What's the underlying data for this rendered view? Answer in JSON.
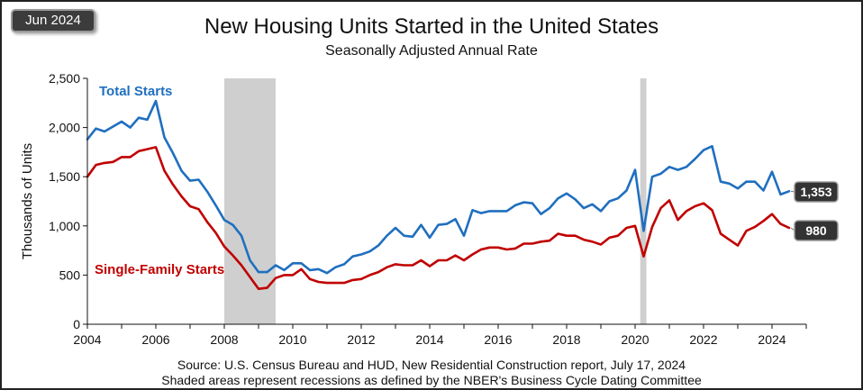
{
  "badge": "Jun 2024",
  "footer": {
    "source": "Source:  U.S. Census Bureau and HUD, New Residential Construction report, July 17, 2024",
    "note": "Shaded areas represent recessions as defined by the NBER's Business Cycle Dating Committee"
  },
  "chart_data": {
    "type": "line",
    "title": "New Housing Units Started in the United States",
    "subtitle": "Seasonally Adjusted Annual Rate",
    "ylabel": "Thousands of Units",
    "xlabel": "",
    "xlim": [
      2004,
      2025
    ],
    "ylim": [
      0,
      2500
    ],
    "x_ticks": [
      2004,
      2006,
      2008,
      2010,
      2012,
      2014,
      2016,
      2018,
      2020,
      2022,
      2024
    ],
    "x_tick_labels": [
      "2004",
      "2006",
      "2008",
      "2010",
      "2012",
      "2014",
      "2016",
      "2018",
      "2020",
      "2022",
      "2024"
    ],
    "y_ticks": [
      0,
      500,
      1000,
      1500,
      2000,
      2500
    ],
    "y_tick_labels": [
      "0",
      "500",
      "1,000",
      "1,500",
      "2,000",
      "2,500"
    ],
    "grid": false,
    "recessions": [
      {
        "start": 2008.0,
        "end": 2009.5
      },
      {
        "start": 2020.15,
        "end": 2020.33
      }
    ],
    "series": [
      {
        "name": "Total Starts",
        "color": "#1f6fbf",
        "label_position": "top-left",
        "end_label": "1,353",
        "points": [
          [
            2004.0,
            1880
          ],
          [
            2004.25,
            1990
          ],
          [
            2004.5,
            1960
          ],
          [
            2004.75,
            2010
          ],
          [
            2005.0,
            2060
          ],
          [
            2005.25,
            2000
          ],
          [
            2005.5,
            2100
          ],
          [
            2005.75,
            2080
          ],
          [
            2006.0,
            2270
          ],
          [
            2006.25,
            1900
          ],
          [
            2006.5,
            1740
          ],
          [
            2006.75,
            1560
          ],
          [
            2007.0,
            1460
          ],
          [
            2007.25,
            1470
          ],
          [
            2007.5,
            1350
          ],
          [
            2007.75,
            1210
          ],
          [
            2008.0,
            1060
          ],
          [
            2008.25,
            1010
          ],
          [
            2008.5,
            900
          ],
          [
            2008.75,
            650
          ],
          [
            2009.0,
            530
          ],
          [
            2009.25,
            530
          ],
          [
            2009.5,
            600
          ],
          [
            2009.75,
            550
          ],
          [
            2010.0,
            620
          ],
          [
            2010.25,
            620
          ],
          [
            2010.5,
            550
          ],
          [
            2010.75,
            560
          ],
          [
            2011.0,
            520
          ],
          [
            2011.25,
            580
          ],
          [
            2011.5,
            610
          ],
          [
            2011.75,
            690
          ],
          [
            2012.0,
            710
          ],
          [
            2012.25,
            740
          ],
          [
            2012.5,
            800
          ],
          [
            2012.75,
            900
          ],
          [
            2013.0,
            980
          ],
          [
            2013.25,
            900
          ],
          [
            2013.5,
            890
          ],
          [
            2013.75,
            1010
          ],
          [
            2014.0,
            880
          ],
          [
            2014.25,
            1010
          ],
          [
            2014.5,
            1020
          ],
          [
            2014.75,
            1070
          ],
          [
            2015.0,
            900
          ],
          [
            2015.25,
            1160
          ],
          [
            2015.5,
            1130
          ],
          [
            2015.75,
            1150
          ],
          [
            2016.0,
            1150
          ],
          [
            2016.25,
            1150
          ],
          [
            2016.5,
            1210
          ],
          [
            2016.75,
            1240
          ],
          [
            2017.0,
            1230
          ],
          [
            2017.25,
            1120
          ],
          [
            2017.5,
            1180
          ],
          [
            2017.75,
            1280
          ],
          [
            2018.0,
            1330
          ],
          [
            2018.25,
            1270
          ],
          [
            2018.5,
            1180
          ],
          [
            2018.75,
            1220
          ],
          [
            2019.0,
            1150
          ],
          [
            2019.25,
            1250
          ],
          [
            2019.5,
            1280
          ],
          [
            2019.75,
            1360
          ],
          [
            2020.0,
            1570
          ],
          [
            2020.25,
            950
          ],
          [
            2020.5,
            1500
          ],
          [
            2020.75,
            1530
          ],
          [
            2021.0,
            1600
          ],
          [
            2021.25,
            1570
          ],
          [
            2021.5,
            1600
          ],
          [
            2021.75,
            1680
          ],
          [
            2022.0,
            1770
          ],
          [
            2022.25,
            1810
          ],
          [
            2022.5,
            1450
          ],
          [
            2022.75,
            1430
          ],
          [
            2023.0,
            1380
          ],
          [
            2023.25,
            1450
          ],
          [
            2023.5,
            1450
          ],
          [
            2023.75,
            1360
          ],
          [
            2024.0,
            1550
          ],
          [
            2024.25,
            1320
          ],
          [
            2024.5,
            1353
          ]
        ]
      },
      {
        "name": "Single-Family Starts",
        "color": "#c00000",
        "label_position": "left-middle",
        "end_label": "980",
        "points": [
          [
            2004.0,
            1500
          ],
          [
            2004.25,
            1620
          ],
          [
            2004.5,
            1640
          ],
          [
            2004.75,
            1650
          ],
          [
            2005.0,
            1700
          ],
          [
            2005.25,
            1700
          ],
          [
            2005.5,
            1760
          ],
          [
            2005.75,
            1780
          ],
          [
            2006.0,
            1800
          ],
          [
            2006.25,
            1560
          ],
          [
            2006.5,
            1420
          ],
          [
            2006.75,
            1300
          ],
          [
            2007.0,
            1200
          ],
          [
            2007.25,
            1170
          ],
          [
            2007.5,
            1040
          ],
          [
            2007.75,
            930
          ],
          [
            2008.0,
            790
          ],
          [
            2008.25,
            700
          ],
          [
            2008.5,
            600
          ],
          [
            2008.75,
            480
          ],
          [
            2009.0,
            360
          ],
          [
            2009.25,
            370
          ],
          [
            2009.5,
            470
          ],
          [
            2009.75,
            500
          ],
          [
            2010.0,
            500
          ],
          [
            2010.25,
            560
          ],
          [
            2010.5,
            460
          ],
          [
            2010.75,
            430
          ],
          [
            2011.0,
            420
          ],
          [
            2011.25,
            420
          ],
          [
            2011.5,
            420
          ],
          [
            2011.75,
            450
          ],
          [
            2012.0,
            460
          ],
          [
            2012.25,
            500
          ],
          [
            2012.5,
            530
          ],
          [
            2012.75,
            580
          ],
          [
            2013.0,
            610
          ],
          [
            2013.25,
            600
          ],
          [
            2013.5,
            600
          ],
          [
            2013.75,
            650
          ],
          [
            2014.0,
            590
          ],
          [
            2014.25,
            650
          ],
          [
            2014.5,
            650
          ],
          [
            2014.75,
            700
          ],
          [
            2015.0,
            650
          ],
          [
            2015.25,
            710
          ],
          [
            2015.5,
            760
          ],
          [
            2015.75,
            780
          ],
          [
            2016.0,
            780
          ],
          [
            2016.25,
            760
          ],
          [
            2016.5,
            770
          ],
          [
            2016.75,
            820
          ],
          [
            2017.0,
            820
          ],
          [
            2017.25,
            840
          ],
          [
            2017.5,
            850
          ],
          [
            2017.75,
            920
          ],
          [
            2018.0,
            900
          ],
          [
            2018.25,
            900
          ],
          [
            2018.5,
            860
          ],
          [
            2018.75,
            840
          ],
          [
            2019.0,
            810
          ],
          [
            2019.25,
            880
          ],
          [
            2019.5,
            900
          ],
          [
            2019.75,
            980
          ],
          [
            2020.0,
            1000
          ],
          [
            2020.25,
            690
          ],
          [
            2020.5,
            990
          ],
          [
            2020.75,
            1180
          ],
          [
            2021.0,
            1260
          ],
          [
            2021.25,
            1060
          ],
          [
            2021.5,
            1150
          ],
          [
            2021.75,
            1200
          ],
          [
            2022.0,
            1230
          ],
          [
            2022.25,
            1160
          ],
          [
            2022.5,
            920
          ],
          [
            2022.75,
            860
          ],
          [
            2023.0,
            800
          ],
          [
            2023.25,
            950
          ],
          [
            2023.5,
            990
          ],
          [
            2023.75,
            1050
          ],
          [
            2024.0,
            1120
          ],
          [
            2024.25,
            1020
          ],
          [
            2024.5,
            980
          ]
        ]
      }
    ]
  }
}
